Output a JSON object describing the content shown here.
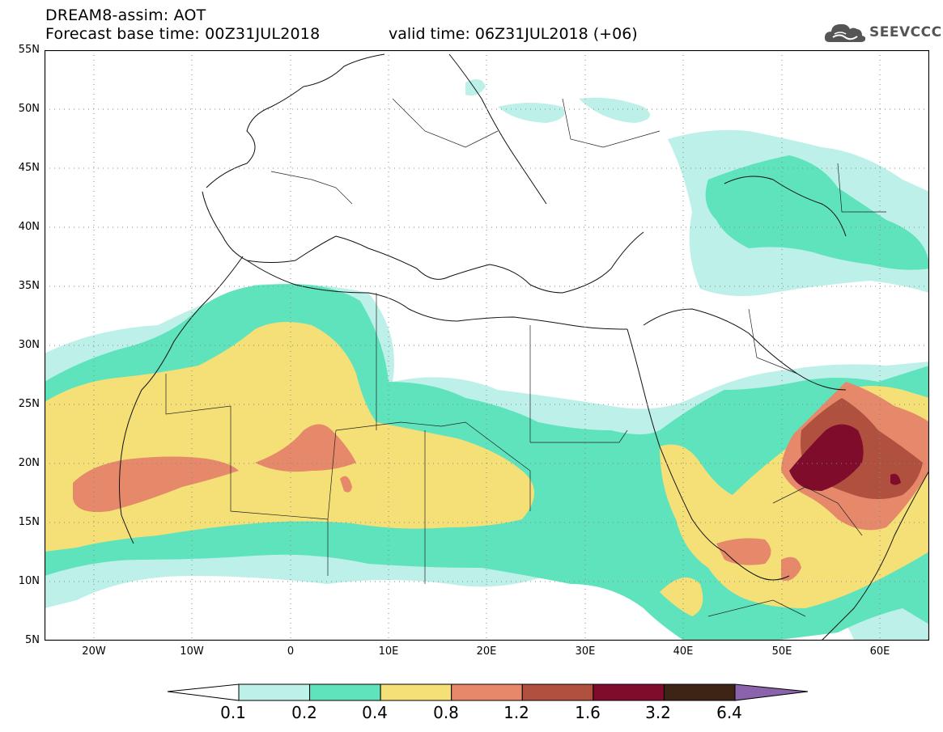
{
  "header": {
    "title": "DREAM8-assim: AOT",
    "base_time": "Forecast base time: 00Z31JUL2018",
    "valid_time": "valid time: 06Z31JUL2018 (+06)"
  },
  "logo": {
    "text": "SEEVCCC",
    "icon": "cloud-logo-icon"
  },
  "axes": {
    "y_labels": [
      "55N",
      "50N",
      "45N",
      "40N",
      "35N",
      "30N",
      "25N",
      "20N",
      "15N",
      "10N",
      "5N"
    ],
    "x_labels": [
      "20W",
      "10W",
      "0",
      "10E",
      "20E",
      "30E",
      "40E",
      "50E",
      "60E"
    ],
    "lon_range": [
      -25,
      65
    ],
    "lat_range": [
      5,
      55
    ],
    "grid": "dotted"
  },
  "legend": {
    "levels": [
      "0.1",
      "0.2",
      "0.4",
      "0.8",
      "1.2",
      "1.6",
      "3.2",
      "6.4"
    ],
    "colors": [
      "#bdf0e8",
      "#5ee3bd",
      "#f5e078",
      "#e6896a",
      "#b0503f",
      "#7f0c2a",
      "#3d2414",
      "#8a63ac"
    ]
  }
}
